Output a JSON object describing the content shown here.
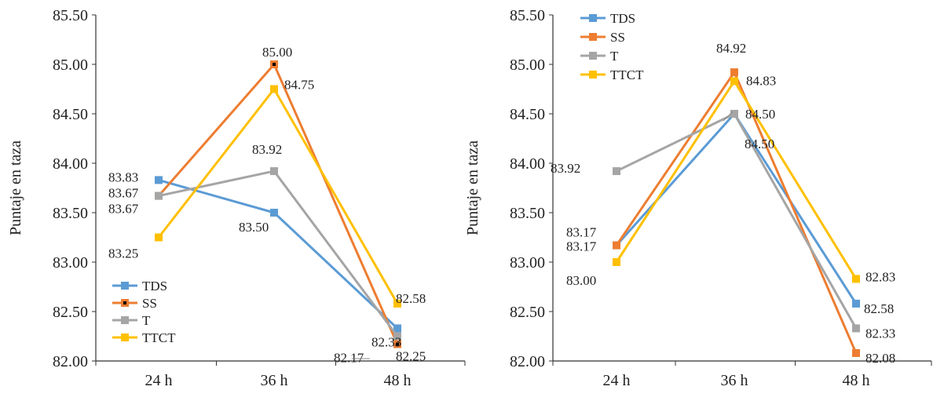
{
  "chart_data": [
    {
      "type": "line",
      "ylabel": "Puntaje en taza",
      "xlabel": "",
      "categories": [
        "24 h",
        "36 h",
        "48 h"
      ],
      "ylim": [
        82.0,
        85.5
      ],
      "yticks": [
        "82.00",
        "82.50",
        "83.00",
        "83.50",
        "84.00",
        "84.50",
        "85.00",
        "85.50"
      ],
      "grid": false,
      "legend": "bottom-left",
      "series": [
        {
          "name": "TDS",
          "color": "#5b9bd5",
          "values": [
            83.83,
            83.5,
            82.33
          ],
          "labels": [
            "83.83",
            "83.50",
            "82.33"
          ]
        },
        {
          "name": "SS",
          "color": "#ed7d31",
          "values": [
            83.67,
            85.0,
            82.17
          ],
          "labels": [
            "83.67",
            "85.00",
            "82.17"
          ]
        },
        {
          "name": "T",
          "color": "#a5a5a5",
          "values": [
            83.67,
            83.92,
            82.25
          ],
          "labels": [
            "83.67",
            "83.92",
            "82.25"
          ]
        },
        {
          "name": "TTCT",
          "color": "#ffc000",
          "values": [
            83.25,
            84.75,
            82.58
          ],
          "labels": [
            "83.25",
            "84.75",
            "82.58"
          ]
        }
      ]
    },
    {
      "type": "line",
      "ylabel": "Puntaje en taza",
      "xlabel": "",
      "categories": [
        "24 h",
        "36 h",
        "48 h"
      ],
      "ylim": [
        82.0,
        85.5
      ],
      "yticks": [
        "82.00",
        "82.50",
        "83.00",
        "83.50",
        "84.00",
        "84.50",
        "85.00",
        "85.50"
      ],
      "grid": false,
      "legend": "top-left",
      "series": [
        {
          "name": "TDS",
          "color": "#5b9bd5",
          "values": [
            83.17,
            84.5,
            82.58
          ],
          "labels": [
            "83.17",
            "84.50",
            "82.58"
          ]
        },
        {
          "name": "SS",
          "color": "#ed7d31",
          "values": [
            83.17,
            84.92,
            82.08
          ],
          "labels": [
            "83.17",
            "84.92",
            "82.08"
          ]
        },
        {
          "name": "T",
          "color": "#a5a5a5",
          "values": [
            83.92,
            84.5,
            82.33
          ],
          "labels": [
            "83.92",
            "84.50",
            "82.33"
          ]
        },
        {
          "name": "TTCT",
          "color": "#ffc000",
          "values": [
            83.0,
            84.83,
            82.83
          ],
          "labels": [
            "83.00",
            "84.83",
            "82.83"
          ]
        }
      ]
    }
  ]
}
